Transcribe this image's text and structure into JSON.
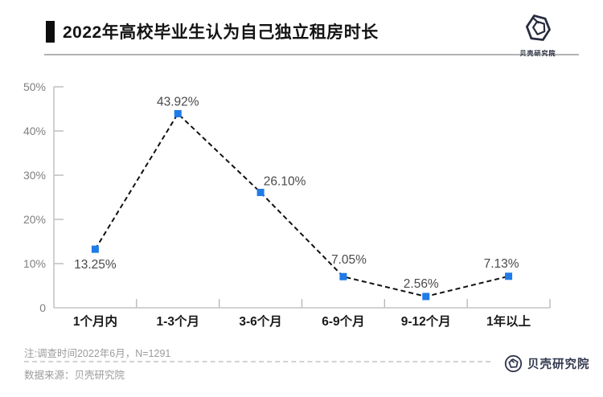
{
  "header": {
    "title": "2022年高校毕业生认为自己独立租房时长",
    "logo_text": "贝壳研究院"
  },
  "chart_data": {
    "type": "line",
    "title": "2022年高校毕业生认为自己独立租房时长",
    "categories": [
      "1个月内",
      "1-3个月",
      "3-6个月",
      "6-9个月",
      "9-12个月",
      "1年以上"
    ],
    "values": [
      13.25,
      43.92,
      26.1,
      7.05,
      2.56,
      7.13
    ],
    "labels": [
      "13.25%",
      "43.92%",
      "26.10%",
      "7.05%",
      "2.56%",
      "7.13%"
    ],
    "y_ticks": [
      "0",
      "10%",
      "20%",
      "30%",
      "40%",
      "50%"
    ],
    "ylim": [
      0,
      50
    ],
    "xlabel": "",
    "ylabel": "",
    "grid": false,
    "legend": "none",
    "line_style": "dashed",
    "marker": "square",
    "line_color": "#111111",
    "marker_color": "#1f7be8",
    "axis_color": "#c4c4c4",
    "tick_label_color": "#7f7f7f",
    "data_label_color": "#4a4a4a",
    "category_label_color": "#1a1a1a"
  },
  "footer": {
    "note": "注:调查时间2022年6月，N=1291",
    "source": "数据来源：贝壳研究院",
    "logo_text": "贝壳研究院"
  }
}
